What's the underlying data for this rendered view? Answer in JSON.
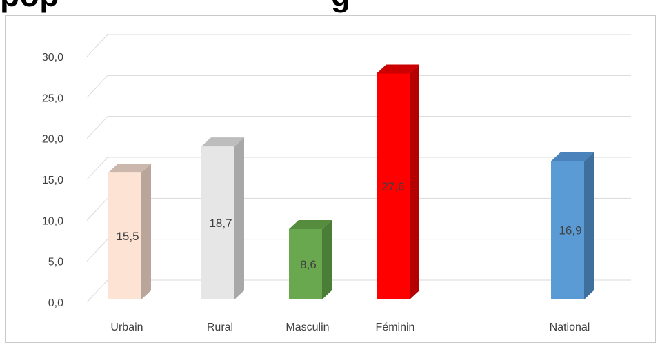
{
  "heading_fragment": "pop ... g",
  "chart_data": {
    "type": "bar",
    "title": "",
    "xlabel": "",
    "ylabel": "",
    "categories": [
      "Urbain",
      "Rural",
      "Masculin",
      "Féminin",
      "National"
    ],
    "values": [
      15.5,
      18.7,
      8.6,
      27.6,
      16.9
    ],
    "value_labels": [
      "15,5",
      "18,7",
      "8,6",
      "27,6",
      "16,9"
    ],
    "ylim": [
      0,
      30
    ],
    "yticks": [
      "0,0",
      "5,0",
      "10,0",
      "15,0",
      "20,0",
      "25,0",
      "30,0"
    ],
    "grid": true,
    "legend": "none",
    "style": "3d-column",
    "colors": [
      "#fde3d4",
      "#e6e6e6",
      "#6aa84f",
      "#ff0000",
      "#5b9bd5"
    ],
    "side_colors": [
      "#b9a59a",
      "#a8a8a8",
      "#4a7d35",
      "#b40000",
      "#3f6f9c"
    ],
    "top_colors": [
      "#cbb7ac",
      "#bdbdbd",
      "#558c3e",
      "#cc0000",
      "#4a83bb"
    ]
  }
}
